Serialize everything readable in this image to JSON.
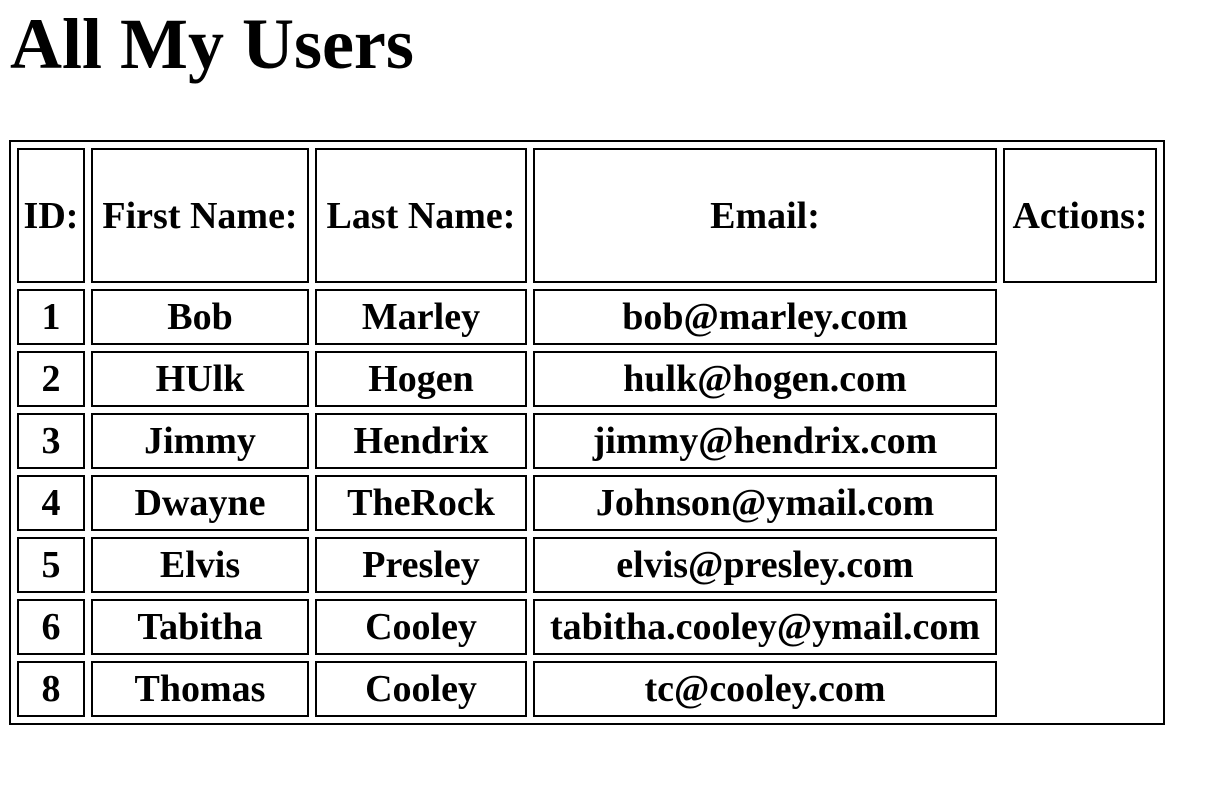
{
  "page": {
    "title": "All My Users"
  },
  "table": {
    "headers": {
      "id": "ID:",
      "first_name": "First Name:",
      "last_name": "Last Name:",
      "email": "Email:",
      "actions": "Actions:"
    },
    "rows": [
      {
        "id": "1",
        "first_name": "Bob",
        "last_name": "Marley",
        "email": "bob@marley.com"
      },
      {
        "id": "2",
        "first_name": "HUlk",
        "last_name": "Hogen",
        "email": "hulk@hogen.com"
      },
      {
        "id": "3",
        "first_name": "Jimmy",
        "last_name": "Hendrix",
        "email": "jimmy@hendrix.com"
      },
      {
        "id": "4",
        "first_name": "Dwayne",
        "last_name": "TheRock",
        "email": "Johnson@ymail.com"
      },
      {
        "id": "5",
        "first_name": "Elvis",
        "last_name": "Presley",
        "email": "elvis@presley.com"
      },
      {
        "id": "6",
        "first_name": "Tabitha",
        "last_name": "Cooley",
        "email": "tabitha.cooley@ymail.com"
      },
      {
        "id": "8",
        "first_name": "Thomas",
        "last_name": "Cooley",
        "email": "tc@cooley.com"
      }
    ]
  }
}
